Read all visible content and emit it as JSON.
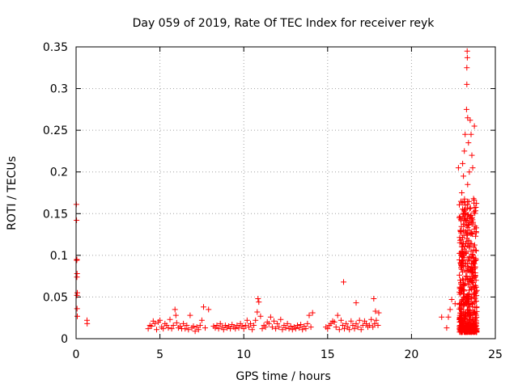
{
  "chart_data": {
    "type": "scatter",
    "title": "Day 059 of 2019, Rate Of TEC Index for receiver reyk",
    "xlabel": "GPS time / hours",
    "ylabel": "ROTI / TECUs",
    "xlim": [
      0,
      25
    ],
    "ylim": [
      0,
      0.35
    ],
    "xticks": [
      0,
      5,
      10,
      15,
      20,
      25
    ],
    "xtick_labels": [
      "0",
      "5",
      "10",
      "15",
      "20",
      "25"
    ],
    "yticks": [
      0,
      0.05,
      0.1,
      0.15,
      0.2,
      0.25,
      0.3,
      0.35
    ],
    "ytick_labels": [
      "0",
      "0.05",
      "0.1",
      "0.15",
      "0.2",
      "0.25",
      "0.3",
      "0.35"
    ],
    "grid": true,
    "marker": "plus",
    "color": "#ff0000",
    "series": [
      {
        "name": "ROTI",
        "points": [
          [
            0.02,
            0.161
          ],
          [
            0.03,
            0.142
          ],
          [
            0.05,
            0.095
          ],
          [
            0.04,
            0.094
          ],
          [
            0.06,
            0.078
          ],
          [
            0.05,
            0.074
          ],
          [
            0.07,
            0.055
          ],
          [
            0.05,
            0.052
          ],
          [
            0.06,
            0.036
          ],
          [
            0.07,
            0.027
          ],
          [
            0.65,
            0.022
          ],
          [
            0.66,
            0.018
          ],
          [
            4.3,
            0.012
          ],
          [
            4.4,
            0.016
          ],
          [
            4.5,
            0.015
          ],
          [
            4.6,
            0.021
          ],
          [
            4.7,
            0.018
          ],
          [
            4.8,
            0.011
          ],
          [
            4.9,
            0.02
          ],
          [
            5.0,
            0.022
          ],
          [
            5.1,
            0.014
          ],
          [
            5.2,
            0.012
          ],
          [
            5.3,
            0.018
          ],
          [
            5.4,
            0.016
          ],
          [
            5.5,
            0.013
          ],
          [
            5.6,
            0.023
          ],
          [
            5.7,
            0.012
          ],
          [
            5.8,
            0.016
          ],
          [
            5.9,
            0.035
          ],
          [
            5.95,
            0.028
          ],
          [
            6.0,
            0.019
          ],
          [
            6.1,
            0.013
          ],
          [
            6.2,
            0.015
          ],
          [
            6.3,
            0.012
          ],
          [
            6.4,
            0.018
          ],
          [
            6.5,
            0.012
          ],
          [
            6.6,
            0.016
          ],
          [
            6.7,
            0.011
          ],
          [
            6.8,
            0.028
          ],
          [
            6.9,
            0.013
          ],
          [
            7.0,
            0.015
          ],
          [
            7.1,
            0.009
          ],
          [
            7.2,
            0.014
          ],
          [
            7.3,
            0.011
          ],
          [
            7.4,
            0.016
          ],
          [
            7.5,
            0.022
          ],
          [
            7.6,
            0.038
          ],
          [
            7.7,
            0.013
          ],
          [
            7.9,
            0.035
          ],
          [
            8.2,
            0.015
          ],
          [
            8.3,
            0.013
          ],
          [
            8.4,
            0.016
          ],
          [
            8.5,
            0.012
          ],
          [
            8.6,
            0.018
          ],
          [
            8.7,
            0.014
          ],
          [
            8.8,
            0.011
          ],
          [
            8.9,
            0.016
          ],
          [
            9.0,
            0.013
          ],
          [
            9.1,
            0.015
          ],
          [
            9.2,
            0.012
          ],
          [
            9.3,
            0.017
          ],
          [
            9.4,
            0.014
          ],
          [
            9.5,
            0.012
          ],
          [
            9.6,
            0.016
          ],
          [
            9.7,
            0.013
          ],
          [
            9.8,
            0.018
          ],
          [
            9.9,
            0.015
          ],
          [
            10.0,
            0.012
          ],
          [
            10.1,
            0.016
          ],
          [
            10.2,
            0.022
          ],
          [
            10.3,
            0.014
          ],
          [
            10.4,
            0.018
          ],
          [
            10.5,
            0.011
          ],
          [
            10.6,
            0.016
          ],
          [
            10.7,
            0.022
          ],
          [
            10.8,
            0.032
          ],
          [
            10.85,
            0.048
          ],
          [
            10.9,
            0.044
          ],
          [
            11.0,
            0.027
          ],
          [
            11.1,
            0.012
          ],
          [
            11.2,
            0.016
          ],
          [
            11.3,
            0.014
          ],
          [
            11.4,
            0.02
          ],
          [
            11.5,
            0.018
          ],
          [
            11.6,
            0.026
          ],
          [
            11.7,
            0.014
          ],
          [
            11.8,
            0.021
          ],
          [
            11.9,
            0.012
          ],
          [
            12.0,
            0.018
          ],
          [
            12.1,
            0.014
          ],
          [
            12.2,
            0.023
          ],
          [
            12.3,
            0.011
          ],
          [
            12.4,
            0.016
          ],
          [
            12.5,
            0.013
          ],
          [
            12.6,
            0.018
          ],
          [
            12.7,
            0.012
          ],
          [
            12.8,
            0.015
          ],
          [
            12.9,
            0.011
          ],
          [
            13.0,
            0.014
          ],
          [
            13.1,
            0.012
          ],
          [
            13.2,
            0.016
          ],
          [
            13.3,
            0.013
          ],
          [
            13.4,
            0.017
          ],
          [
            13.5,
            0.011
          ],
          [
            13.6,
            0.015
          ],
          [
            13.7,
            0.012
          ],
          [
            13.8,
            0.018
          ],
          [
            13.9,
            0.028
          ],
          [
            14.0,
            0.014
          ],
          [
            14.1,
            0.031
          ],
          [
            14.9,
            0.014
          ],
          [
            15.0,
            0.012
          ],
          [
            15.1,
            0.016
          ],
          [
            15.2,
            0.018
          ],
          [
            15.3,
            0.021
          ],
          [
            15.4,
            0.02
          ],
          [
            15.5,
            0.014
          ],
          [
            15.6,
            0.028
          ],
          [
            15.7,
            0.011
          ],
          [
            15.8,
            0.022
          ],
          [
            15.9,
            0.016
          ],
          [
            16.0,
            0.012
          ],
          [
            16.1,
            0.018
          ],
          [
            16.2,
            0.014
          ],
          [
            16.3,
            0.011
          ],
          [
            16.4,
            0.021
          ],
          [
            16.5,
            0.016
          ],
          [
            16.6,
            0.012
          ],
          [
            16.7,
            0.018
          ],
          [
            16.8,
            0.014
          ],
          [
            16.9,
            0.022
          ],
          [
            17.0,
            0.011
          ],
          [
            17.1,
            0.016
          ],
          [
            17.2,
            0.021
          ],
          [
            17.3,
            0.018
          ],
          [
            17.4,
            0.014
          ],
          [
            17.5,
            0.016
          ],
          [
            17.6,
            0.023
          ],
          [
            17.7,
            0.014
          ],
          [
            17.8,
            0.018
          ],
          [
            17.9,
            0.022
          ],
          [
            18.0,
            0.016
          ],
          [
            15.95,
            0.068
          ],
          [
            16.7,
            0.043
          ],
          [
            17.75,
            0.048
          ],
          [
            17.85,
            0.033
          ],
          [
            18.05,
            0.031
          ],
          [
            21.8,
            0.026
          ],
          [
            22.1,
            0.013
          ],
          [
            22.2,
            0.026
          ],
          [
            22.3,
            0.035
          ],
          [
            22.4,
            0.047
          ],
          [
            22.6,
            0.042
          ],
          [
            22.8,
            0.205
          ],
          [
            22.85,
            0.145
          ],
          [
            22.9,
            0.118
          ],
          [
            22.9,
            0.02
          ],
          [
            22.95,
            0.09
          ],
          [
            22.95,
            0.055
          ],
          [
            23.0,
            0.175
          ],
          [
            23.0,
            0.03
          ],
          [
            23.05,
            0.21
          ],
          [
            23.05,
            0.11
          ],
          [
            23.1,
            0.195
          ],
          [
            23.1,
            0.07
          ],
          [
            23.1,
            0.014
          ],
          [
            23.15,
            0.225
          ],
          [
            23.15,
            0.05
          ],
          [
            23.2,
            0.155
          ],
          [
            23.2,
            0.245
          ],
          [
            23.25,
            0.105
          ],
          [
            23.25,
            0.028
          ],
          [
            23.28,
            0.275
          ],
          [
            23.3,
            0.305
          ],
          [
            23.3,
            0.325
          ],
          [
            23.32,
            0.345
          ],
          [
            23.33,
            0.337
          ],
          [
            23.35,
            0.265
          ],
          [
            23.35,
            0.185
          ],
          [
            23.4,
            0.235
          ],
          [
            23.4,
            0.085
          ],
          [
            23.4,
            0.04
          ],
          [
            23.45,
            0.2
          ],
          [
            23.45,
            0.13
          ],
          [
            23.5,
            0.262
          ],
          [
            23.5,
            0.062
          ],
          [
            23.5,
            0.017
          ],
          [
            23.55,
            0.245
          ],
          [
            23.55,
            0.148
          ],
          [
            23.6,
            0.22
          ],
          [
            23.6,
            0.098
          ],
          [
            23.65,
            0.205
          ],
          [
            23.65,
            0.038
          ],
          [
            23.7,
            0.168
          ],
          [
            23.7,
            0.11
          ],
          [
            23.75,
            0.255
          ],
          [
            23.75,
            0.05
          ],
          [
            23.8,
            0.135
          ],
          [
            23.8,
            0.075
          ],
          [
            23.85,
            0.045
          ],
          [
            23.85,
            0.028
          ],
          [
            23.9,
            0.058
          ],
          [
            23.9,
            0.012
          ],
          [
            22.9,
            0.07
          ],
          [
            22.95,
            0.085
          ],
          [
            23.0,
            0.06
          ],
          [
            23.05,
            0.08
          ],
          [
            23.1,
            0.1
          ],
          [
            23.15,
            0.065
          ],
          [
            23.2,
            0.09
          ],
          [
            23.25,
            0.075
          ],
          [
            23.3,
            0.12
          ],
          [
            23.35,
            0.07
          ],
          [
            23.4,
            0.065
          ],
          [
            23.45,
            0.095
          ],
          [
            23.5,
            0.08
          ],
          [
            23.55,
            0.105
          ],
          [
            23.6,
            0.06
          ],
          [
            23.65,
            0.085
          ],
          [
            23.7,
            0.075
          ],
          [
            23.75,
            0.09
          ],
          [
            23.8,
            0.055
          ],
          [
            23.85,
            0.07
          ]
        ]
      }
    ]
  }
}
